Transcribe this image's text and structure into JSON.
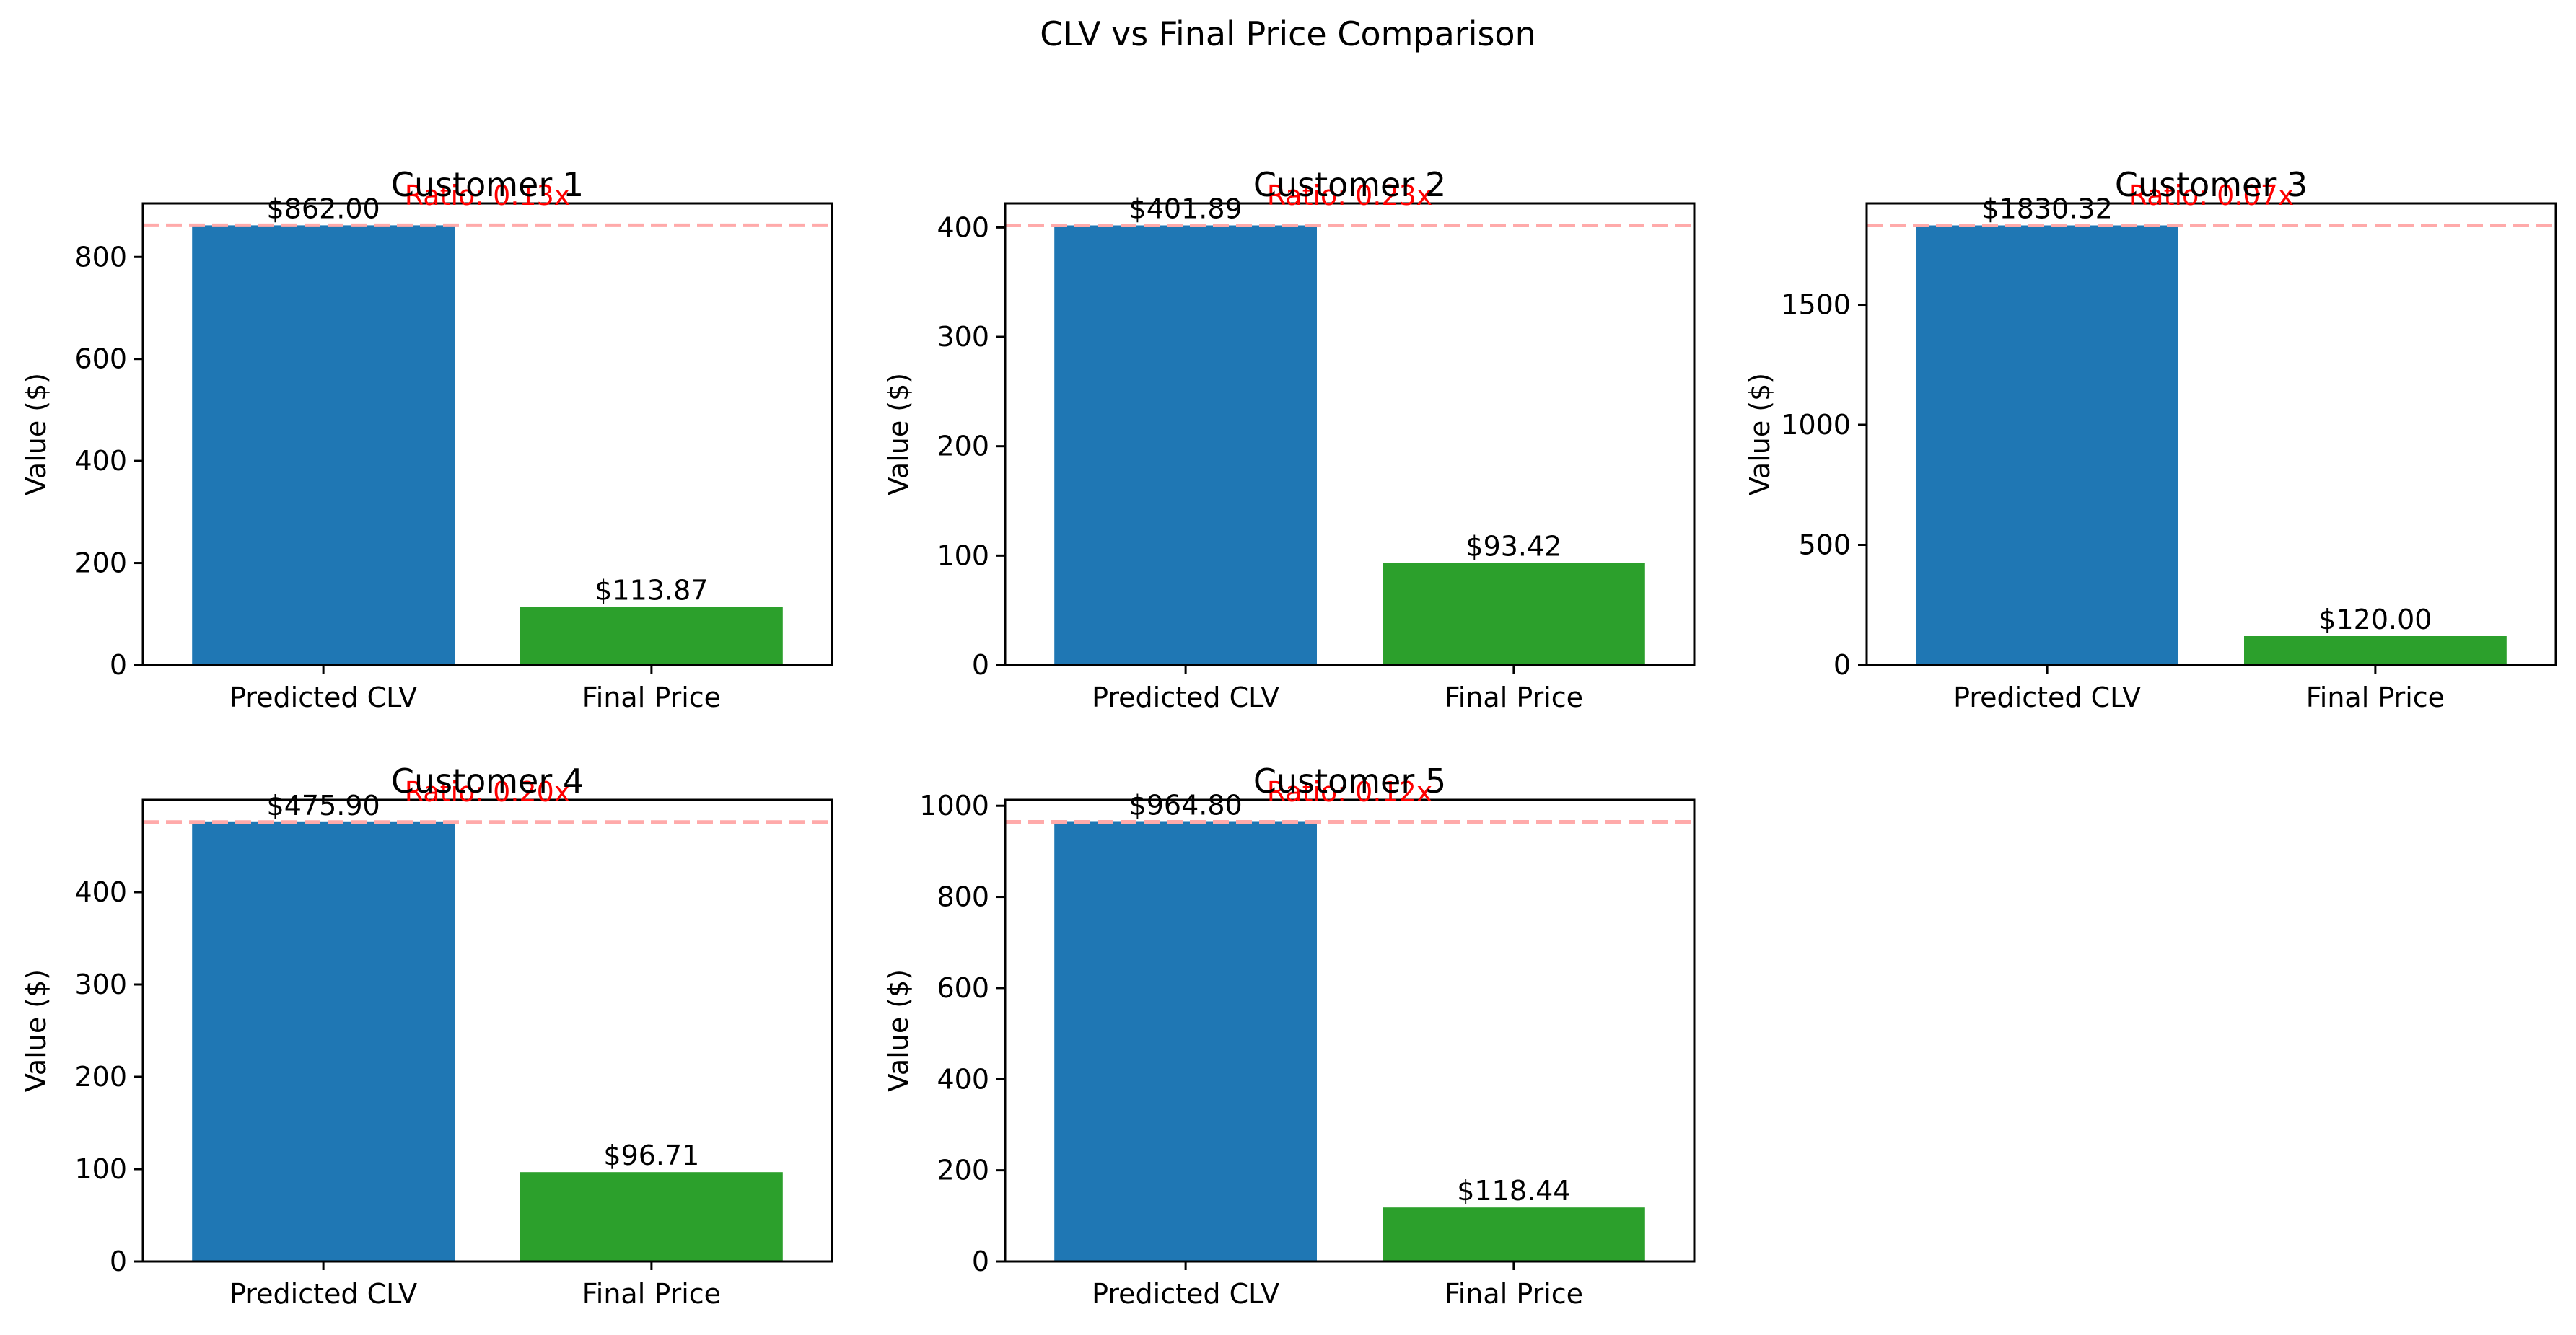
{
  "figure": {
    "title": "CLV vs Final Price Comparison"
  },
  "colors": {
    "predicted_clv": "#1f77b4",
    "final_price": "#2ca02c",
    "ratio_text": "#ff0000",
    "reference_line": "#ffaaaa"
  },
  "chart_data": [
    {
      "type": "bar",
      "title": "Customer 1",
      "categories": [
        "Predicted CLV",
        "Final Price"
      ],
      "values": [
        862.0,
        113.87
      ],
      "labels": [
        "$862.00",
        "$113.87"
      ],
      "ratio_label": "Ratio: 0.13x",
      "ylabel": "Value ($)",
      "ylim": [
        0,
        905
      ],
      "yticks": [
        0,
        200,
        400,
        600,
        800
      ]
    },
    {
      "type": "bar",
      "title": "Customer 2",
      "categories": [
        "Predicted CLV",
        "Final Price"
      ],
      "values": [
        401.89,
        93.42
      ],
      "labels": [
        "$401.89",
        "$93.42"
      ],
      "ratio_label": "Ratio: 0.23x",
      "ylabel": "Value ($)",
      "ylim": [
        0,
        422
      ],
      "yticks": [
        0,
        100,
        200,
        300,
        400
      ]
    },
    {
      "type": "bar",
      "title": "Customer 3",
      "categories": [
        "Predicted CLV",
        "Final Price"
      ],
      "values": [
        1830.32,
        120.0
      ],
      "labels": [
        "$1830.32",
        "$120.00"
      ],
      "ratio_label": "Ratio: 0.07x",
      "ylabel": "Value ($)",
      "ylim": [
        0,
        1922
      ],
      "yticks": [
        0,
        500,
        1000,
        1500
      ]
    },
    {
      "type": "bar",
      "title": "Customer 4",
      "categories": [
        "Predicted CLV",
        "Final Price"
      ],
      "values": [
        475.9,
        96.71
      ],
      "labels": [
        "$475.90",
        "$96.71"
      ],
      "ratio_label": "Ratio: 0.20x",
      "ylabel": "Value ($)",
      "ylim": [
        0,
        500
      ],
      "yticks": [
        0,
        100,
        200,
        300,
        400
      ]
    },
    {
      "type": "bar",
      "title": "Customer 5",
      "categories": [
        "Predicted CLV",
        "Final Price"
      ],
      "values": [
        964.8,
        118.44
      ],
      "labels": [
        "$964.80",
        "$118.44"
      ],
      "ratio_label": "Ratio: 0.12x",
      "ylabel": "Value ($)",
      "ylim": [
        0,
        1013
      ],
      "yticks": [
        0,
        200,
        400,
        600,
        800,
        1000
      ]
    }
  ]
}
